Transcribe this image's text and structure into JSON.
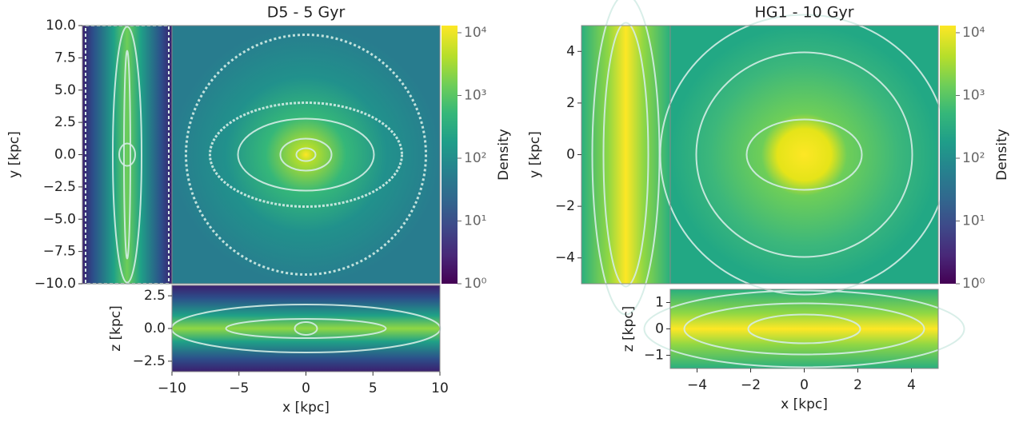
{
  "chart_data": [
    {
      "type": "heatmap",
      "title": "D5 - 5 Gyr",
      "xlabel": "x [kpc]",
      "ylabel": "y [kpc]",
      "zlabel": "z [kpc]",
      "colormap": "viridis",
      "xlim": [
        -10,
        10
      ],
      "xticks": [
        {
          "value": -10,
          "label": "−10"
        },
        {
          "value": -5,
          "label": "−5"
        },
        0,
        5,
        10
      ],
      "ylim": [
        -10,
        10
      ],
      "yticks": [
        {
          "value": 10,
          "label": "10.0"
        },
        7.5,
        {
          "value": 5,
          "label": "5.0"
        },
        2.5,
        {
          "value": 0,
          "label": "0.0"
        },
        {
          "value": -2.5,
          "label": "−2.5"
        },
        {
          "value": -5,
          "label": "−5.0"
        },
        {
          "value": -7.5,
          "label": "−7.5"
        },
        {
          "value": -10,
          "label": "−10.0"
        }
      ],
      "zlim": [
        -3.3,
        3.3
      ],
      "zticks": [
        2.5,
        {
          "value": 0,
          "label": "0.0"
        },
        {
          "value": -2.5,
          "label": "−2.5"
        }
      ],
      "colorbar": {
        "label": "Density",
        "log_scale": true,
        "lim": [
          1,
          13000
        ],
        "ticks": [
          {
            "value": 10000,
            "label": "10⁴"
          },
          {
            "value": 1000,
            "label": "10³"
          },
          {
            "value": 100,
            "label": "10²"
          },
          {
            "value": 10,
            "label": "10¹"
          },
          {
            "value": 1,
            "label": "10⁰"
          }
        ]
      }
    },
    {
      "type": "heatmap",
      "title": "HG1 - 10 Gyr",
      "xlabel": "x [kpc]",
      "ylabel": "y [kpc]",
      "zlabel": "z [kpc]",
      "colormap": "viridis",
      "xlim": [
        -5,
        5
      ],
      "xticks": [
        {
          "value": -4,
          "label": "−4"
        },
        {
          "value": -2,
          "label": "−2"
        },
        0,
        2,
        4
      ],
      "ylim": [
        -5,
        5
      ],
      "yticks": [
        4,
        2,
        0,
        {
          "value": -2,
          "label": "−2"
        },
        {
          "value": -4,
          "label": "−4"
        }
      ],
      "zlim": [
        -1.5,
        1.5
      ],
      "zticks": [
        1,
        0,
        {
          "value": -1,
          "label": "−1"
        }
      ],
      "colorbar": {
        "label": "Density",
        "log_scale": true,
        "lim": [
          1,
          13000
        ],
        "ticks": [
          {
            "value": 10000,
            "label": "10⁴"
          },
          {
            "value": 1000,
            "label": "10³"
          },
          {
            "value": 100,
            "label": "10²"
          },
          {
            "value": 10,
            "label": "10¹"
          },
          {
            "value": 1,
            "label": "10⁰"
          }
        ]
      }
    }
  ]
}
